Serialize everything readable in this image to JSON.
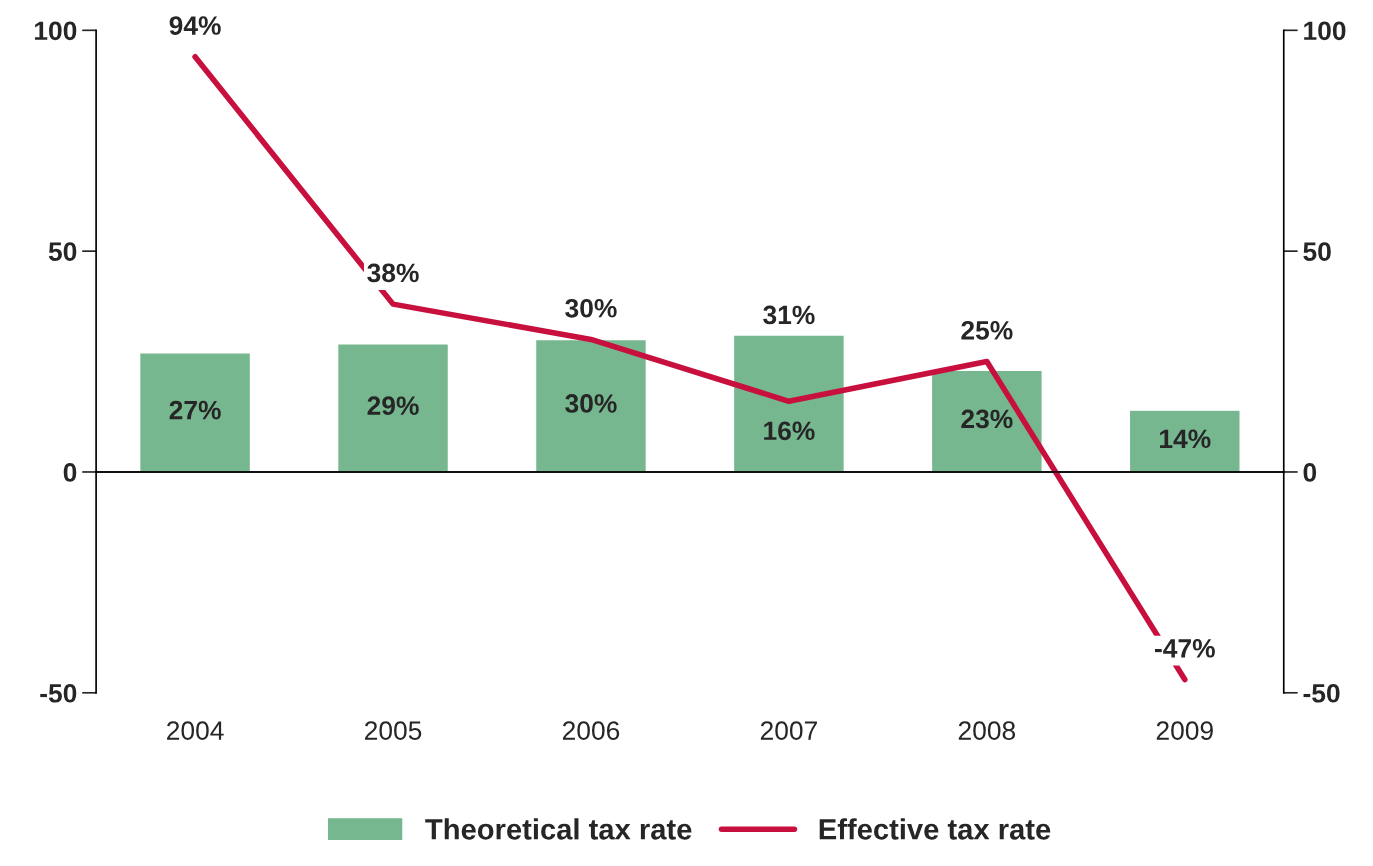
{
  "chart_data": {
    "type": "bar",
    "categories": [
      "2004",
      "2005",
      "2006",
      "2007",
      "2008",
      "2009"
    ],
    "series": [
      {
        "name": "Theoretical tax rate",
        "color": "#76b78f",
        "values": [
          27,
          29,
          30,
          31,
          23,
          14
        ],
        "value_labels": [
          "27%",
          "29%",
          "30%",
          "31%",
          "23%",
          "14%"
        ]
      },
      {
        "name": "Effective tax rate",
        "type": "line",
        "axis": "y2",
        "color": "#c8103e",
        "values": [
          94,
          38,
          30,
          16,
          25,
          -47
        ],
        "value_labels": [
          "94%",
          "38%",
          "30%",
          "16%",
          "25%",
          "-47%"
        ]
      }
    ],
    "ylim": [
      -50,
      100
    ],
    "yticks": [
      -50,
      0,
      50,
      100
    ],
    "y2lim": [
      -50,
      100
    ],
    "y2ticks": [
      -50,
      0,
      50,
      100
    ],
    "legend": "bottom",
    "marker": "none",
    "line_style": "solid"
  }
}
